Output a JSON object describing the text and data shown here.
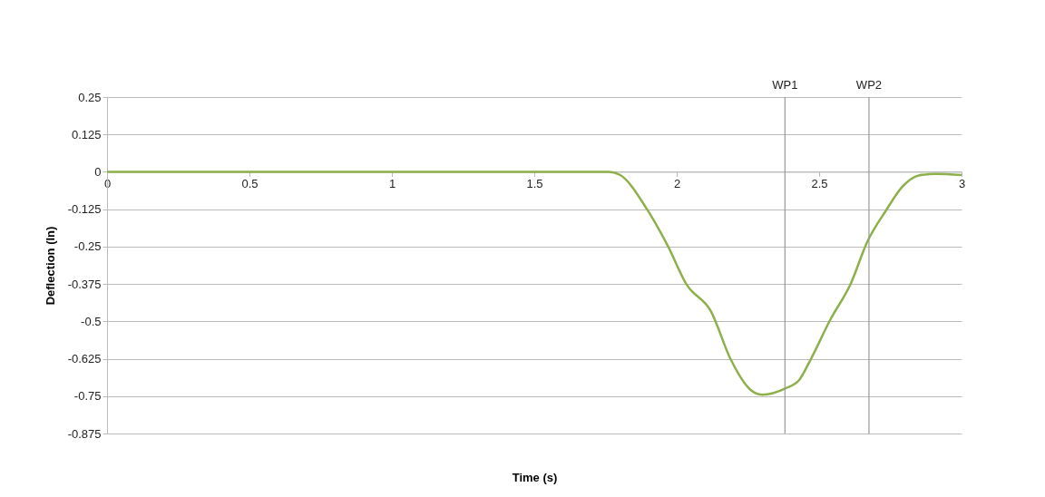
{
  "chart_data": {
    "type": "line",
    "xlabel": "Time (s)",
    "ylabel": "Deflection (In)",
    "xlim": [
      0,
      3
    ],
    "xticks": [
      0,
      0.5,
      1,
      1.5,
      2,
      2.5,
      3
    ],
    "ylim": [
      -0.875,
      0.25
    ],
    "yticks": [
      -0.875,
      -0.75,
      -0.625,
      -0.5,
      -0.375,
      -0.25,
      -0.125,
      0,
      0.125,
      0.25
    ],
    "grid": "y",
    "legend": false,
    "marker": "none",
    "line_style": "solid",
    "ref_lines": [
      {
        "axis": "x",
        "value": 2.38,
        "label": "WP1"
      },
      {
        "axis": "x",
        "value": 2.675,
        "label": "WP2"
      }
    ],
    "series": [
      {
        "color": "#8db04a",
        "x": [
          0,
          0.5,
          1,
          1.5,
          1.76,
          1.8,
          1.895,
          1.97,
          2.034,
          2.12,
          2.19,
          2.257,
          2.3,
          2.384,
          2.43,
          2.47,
          2.54,
          2.61,
          2.67,
          2.735,
          2.79,
          2.85,
          2.91,
          3
        ],
        "values": [
          0,
          0,
          0,
          0,
          0,
          -0.01,
          -0.124,
          -0.25,
          -0.376,
          -0.466,
          -0.628,
          -0.727,
          -0.745,
          -0.723,
          -0.696,
          -0.628,
          -0.493,
          -0.376,
          -0.232,
          -0.129,
          -0.052,
          -0.012,
          -0.007,
          -0.011
        ]
      }
    ]
  }
}
